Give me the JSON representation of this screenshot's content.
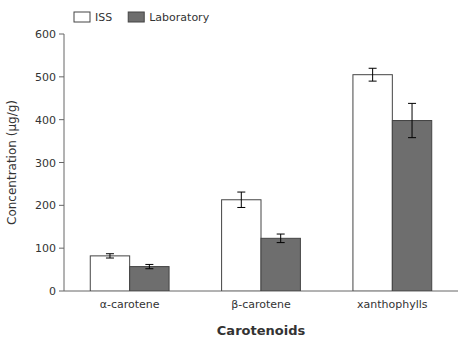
{
  "chart_data": {
    "type": "bar",
    "categories": [
      "α-carotene",
      "β-carotene",
      "xanthophylls"
    ],
    "series": [
      {
        "name": "ISS",
        "color": "#ffffff",
        "values": [
          82,
          213,
          505
        ],
        "errors": [
          5,
          18,
          15
        ]
      },
      {
        "name": "Laboratory",
        "color": "#6e6e6e",
        "values": [
          57,
          123,
          398
        ],
        "errors": [
          5,
          10,
          40
        ]
      }
    ],
    "xlabel": "Carotenoids",
    "ylabel": "Concentration (μg/g)",
    "ylim": [
      0,
      600
    ],
    "yticks": [
      0,
      100,
      200,
      300,
      400,
      500,
      600
    ],
    "grid": false,
    "legend": "upper left"
  }
}
